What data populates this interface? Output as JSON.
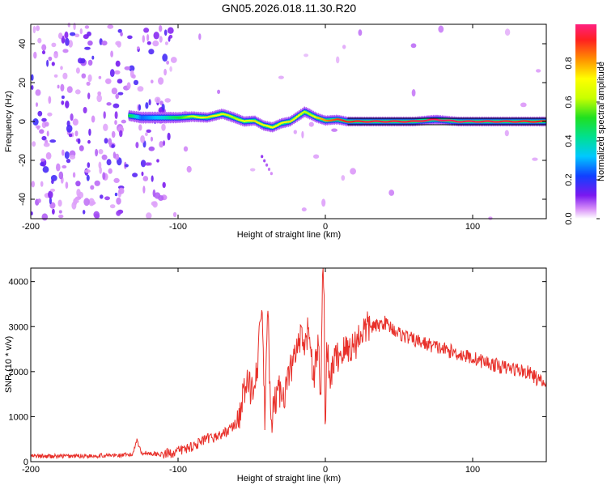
{
  "title": "GN05.2026.018.11.30.R20",
  "chart_data": [
    {
      "type": "heatmap",
      "xlabel": "Height of straight line (km)",
      "ylabel": "Frequency (Hz)",
      "xlim": [
        -200,
        150
      ],
      "ylim": [
        -50,
        50
      ],
      "xticks": [
        -200,
        -100,
        0,
        100
      ],
      "yticks": [
        -40,
        -20,
        0,
        20,
        40
      ],
      "colorbar": {
        "label": "Normalized spectral amplitude",
        "range": [
          0,
          1
        ],
        "ticks": [
          0.0,
          0.2,
          0.4,
          0.6,
          0.8
        ]
      },
      "ridge": {
        "x": [
          -133,
          -125,
          -110,
          -100,
          -90,
          -80,
          -70,
          -62,
          -55,
          -48,
          -42,
          -36,
          -30,
          -24,
          -18,
          -14,
          -11,
          -6,
          0,
          8,
          15,
          30,
          60,
          75,
          90,
          120,
          150
        ],
        "y": [
          3,
          2,
          2,
          2,
          2.5,
          2,
          4,
          2,
          0,
          0.5,
          -2,
          -3,
          -1,
          0,
          3,
          5,
          4,
          2,
          0.5,
          1,
          0,
          0,
          0,
          1,
          0,
          0,
          0
        ],
        "amplitude": [
          0.5,
          0.25,
          0.35,
          0.5,
          0.65,
          0.75,
          0.7,
          0.6,
          0.7,
          0.75,
          0.72,
          0.72,
          0.7,
          0.75,
          0.7,
          0.62,
          0.6,
          0.75,
          0.82,
          0.9,
          0.92,
          0.95,
          0.95,
          0.97,
          0.97,
          0.95,
          0.92
        ]
      }
    },
    {
      "type": "line",
      "xlabel": "Height of straight line (km)",
      "ylabel": "SNR (10 * v/v)",
      "xlim": [
        -200,
        150
      ],
      "ylim": [
        0,
        4300
      ],
      "xticks": [
        -200,
        -100,
        0,
        100
      ],
      "yticks": [
        0,
        1000,
        2000,
        3000,
        4000
      ],
      "color": "#e8302a",
      "series": [
        {
          "x": [
            -200,
            -180,
            -160,
            -140,
            -131,
            -128,
            -125,
            -110,
            -100,
            -90,
            -80,
            -70,
            -60,
            -54,
            -50,
            -46,
            -43,
            -41,
            -39,
            -37,
            -35,
            -32,
            -28,
            -24,
            -20,
            -17,
            -14,
            -11,
            -8,
            -5,
            -3,
            -2,
            -1,
            0,
            1,
            3,
            5,
            10,
            15,
            20,
            25,
            30,
            35,
            40,
            50,
            60,
            70,
            80,
            90,
            100,
            110,
            120,
            130,
            140,
            145,
            150
          ],
          "y": [
            120,
            120,
            130,
            140,
            150,
            500,
            200,
            160,
            230,
            350,
            500,
            600,
            850,
            1700,
            1600,
            2200,
            3500,
            800,
            3600,
            600,
            1200,
            1600,
            1500,
            2000,
            2400,
            2700,
            2500,
            3000,
            1800,
            2600,
            1500,
            3800,
            4300,
            300,
            2800,
            1600,
            2200,
            2400,
            2500,
            2600,
            2900,
            3000,
            3000,
            3100,
            2850,
            2700,
            2600,
            2500,
            2400,
            2300,
            2200,
            2100,
            2050,
            1950,
            1800,
            1700
          ]
        }
      ]
    }
  ]
}
